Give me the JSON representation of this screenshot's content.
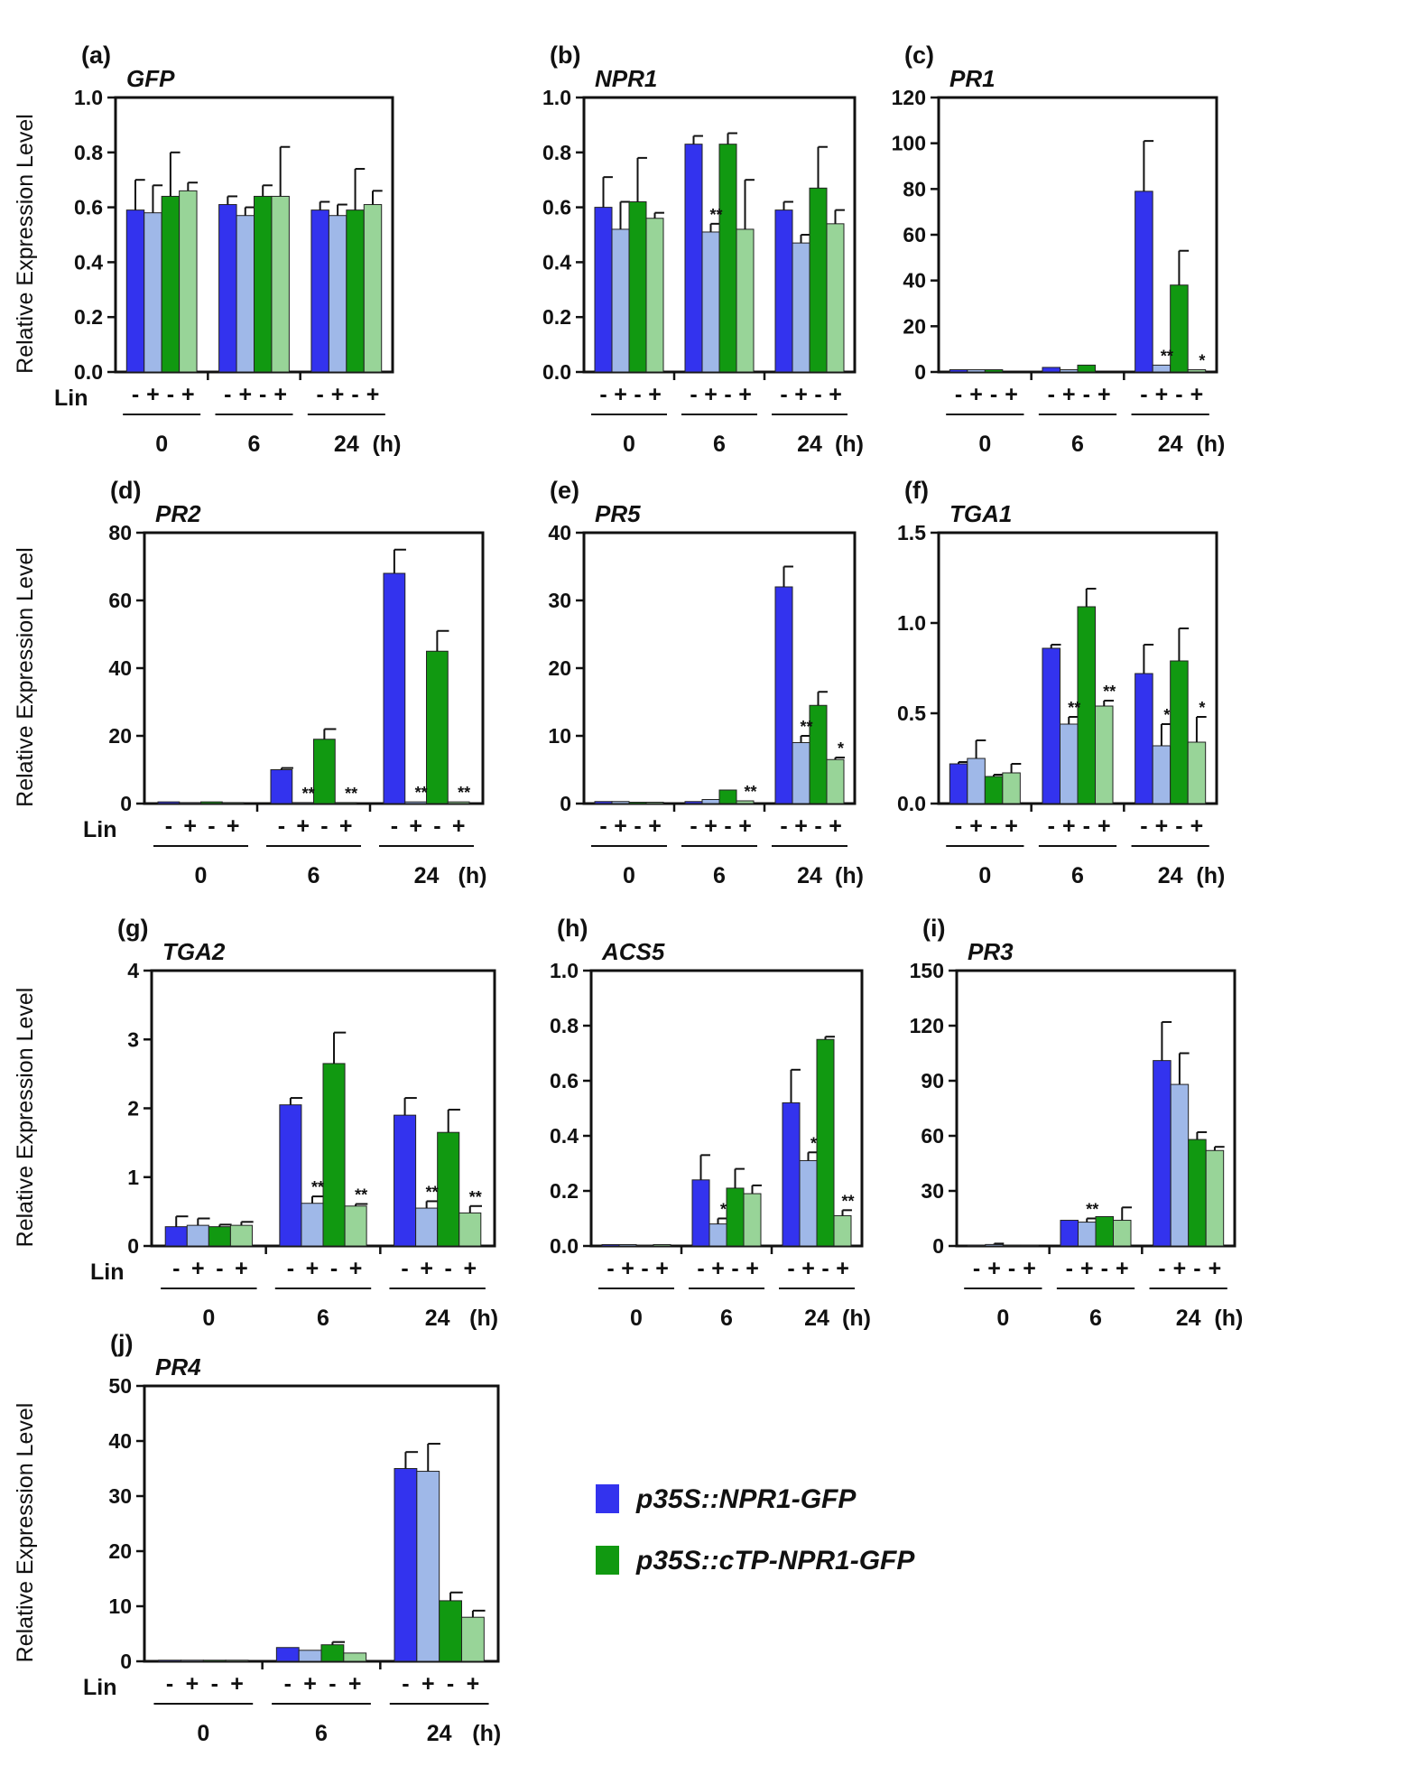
{
  "chart_data": [
    {
      "type": "bar",
      "panel_label": "(a)",
      "title": "GFP",
      "ylabel": "Relative Expression Level",
      "ylim": [
        0,
        1.0
      ],
      "yticks": [
        "0.0",
        "0.2",
        "0.4",
        "0.6",
        "0.8",
        "1.0"
      ],
      "groups": [
        "0",
        "6",
        "24"
      ],
      "time_unit": "(h)",
      "lin_label": "Lin",
      "lin_signs": [
        "-",
        "+",
        "-",
        "+"
      ],
      "series": [
        {
          "name": "p35S::NPR1-GFP -Lin",
          "values": [
            0.59,
            0.61,
            0.59
          ],
          "errors": [
            0.11,
            0.03,
            0.03
          ]
        },
        {
          "name": "p35S::NPR1-GFP +Lin",
          "values": [
            0.58,
            0.57,
            0.57
          ],
          "errors": [
            0.1,
            0.03,
            0.04
          ]
        },
        {
          "name": "p35S::cTP-NPR1-GFP -Lin",
          "values": [
            0.64,
            0.64,
            0.59
          ],
          "errors": [
            0.16,
            0.04,
            0.15
          ]
        },
        {
          "name": "p35S::cTP-NPR1-GFP +Lin",
          "values": [
            0.66,
            0.64,
            0.61
          ],
          "errors": [
            0.03,
            0.18,
            0.05
          ]
        }
      ],
      "annotations": []
    },
    {
      "type": "bar",
      "panel_label": "(b)",
      "title": "NPR1",
      "ylabel": "",
      "ylim": [
        0,
        1.0
      ],
      "yticks": [
        "0.0",
        "0.2",
        "0.4",
        "0.6",
        "0.8",
        "1.0"
      ],
      "groups": [
        "0",
        "6",
        "24"
      ],
      "time_unit": "(h)",
      "lin_label": "",
      "lin_signs": [
        "-",
        "+",
        "-",
        "+"
      ],
      "series": [
        {
          "name": "p35S::NPR1-GFP -Lin",
          "values": [
            0.6,
            0.83,
            0.59
          ],
          "errors": [
            0.11,
            0.03,
            0.03
          ]
        },
        {
          "name": "p35S::NPR1-GFP +Lin",
          "values": [
            0.52,
            0.51,
            0.47
          ],
          "errors": [
            0.1,
            0.03,
            0.03
          ]
        },
        {
          "name": "p35S::cTP-NPR1-GFP -Lin",
          "values": [
            0.62,
            0.83,
            0.67
          ],
          "errors": [
            0.16,
            0.04,
            0.15
          ]
        },
        {
          "name": "p35S::cTP-NPR1-GFP +Lin",
          "values": [
            0.56,
            0.52,
            0.54
          ],
          "errors": [
            0.02,
            0.18,
            0.05
          ]
        }
      ],
      "annotations": [
        {
          "group": 1,
          "bar": 1,
          "text": "**"
        }
      ]
    },
    {
      "type": "bar",
      "panel_label": "(c)",
      "title": "PR1",
      "ylabel": "",
      "ylim": [
        0,
        120
      ],
      "yticks": [
        "0",
        "20",
        "40",
        "60",
        "80",
        "100",
        "120"
      ],
      "groups": [
        "0",
        "6",
        "24"
      ],
      "time_unit": "(h)",
      "lin_label": "",
      "lin_signs": [
        "-",
        "+",
        "-",
        "+"
      ],
      "series": [
        {
          "name": "p35S::NPR1-GFP -Lin",
          "values": [
            1,
            2,
            79
          ],
          "errors": [
            0,
            0,
            22
          ]
        },
        {
          "name": "p35S::NPR1-GFP +Lin",
          "values": [
            1,
            1,
            3
          ],
          "errors": [
            0,
            0,
            0
          ]
        },
        {
          "name": "p35S::cTP-NPR1-GFP -Lin",
          "values": [
            1,
            3,
            38
          ],
          "errors": [
            0,
            0,
            15
          ]
        },
        {
          "name": "p35S::cTP-NPR1-GFP +Lin",
          "values": [
            0,
            0,
            1
          ],
          "errors": [
            0,
            0,
            0
          ]
        }
      ],
      "annotations": [
        {
          "group": 2,
          "bar": 1,
          "text": "**"
        },
        {
          "group": 2,
          "bar": 3,
          "text": "*"
        }
      ]
    },
    {
      "type": "bar",
      "panel_label": "(d)",
      "title": "PR2",
      "ylabel": "Relative Expression Level",
      "ylim": [
        0,
        80
      ],
      "yticks": [
        "0",
        "20",
        "40",
        "60",
        "80"
      ],
      "groups": [
        "0",
        "6",
        "24"
      ],
      "time_unit": "(h)",
      "lin_label": "Lin",
      "lin_signs": [
        "-",
        "+",
        "-",
        "+"
      ],
      "series": [
        {
          "name": "p35S::NPR1-GFP -Lin",
          "values": [
            0.5,
            10,
            68
          ],
          "errors": [
            0,
            0.5,
            7
          ]
        },
        {
          "name": "p35S::NPR1-GFP +Lin",
          "values": [
            0.3,
            0.3,
            0.5
          ],
          "errors": [
            0,
            0,
            0
          ]
        },
        {
          "name": "p35S::cTP-NPR1-GFP -Lin",
          "values": [
            0.5,
            19,
            45
          ],
          "errors": [
            0,
            3,
            6
          ]
        },
        {
          "name": "p35S::cTP-NPR1-GFP +Lin",
          "values": [
            0.3,
            0.3,
            0.5
          ],
          "errors": [
            0,
            0,
            0
          ]
        }
      ],
      "annotations": [
        {
          "group": 1,
          "bar": 1,
          "text": "**"
        },
        {
          "group": 1,
          "bar": 3,
          "text": "**"
        },
        {
          "group": 2,
          "bar": 1,
          "text": "**"
        },
        {
          "group": 2,
          "bar": 3,
          "text": "**"
        }
      ]
    },
    {
      "type": "bar",
      "panel_label": "(e)",
      "title": "PR5",
      "ylabel": "",
      "ylim": [
        0,
        40
      ],
      "yticks": [
        "0",
        "10",
        "20",
        "30",
        "40"
      ],
      "groups": [
        "0",
        "6",
        "24"
      ],
      "time_unit": "(h)",
      "lin_label": "",
      "lin_signs": [
        "-",
        "+",
        "-",
        "+"
      ],
      "series": [
        {
          "name": "p35S::NPR1-GFP -Lin",
          "values": [
            0.3,
            0.3,
            32
          ],
          "errors": [
            0,
            0,
            3
          ]
        },
        {
          "name": "p35S::NPR1-GFP +Lin",
          "values": [
            0.3,
            0.6,
            9
          ],
          "errors": [
            0,
            0,
            1
          ]
        },
        {
          "name": "p35S::cTP-NPR1-GFP -Lin",
          "values": [
            0.2,
            2,
            14.5
          ],
          "errors": [
            0,
            0,
            2
          ]
        },
        {
          "name": "p35S::cTP-NPR1-GFP +Lin",
          "values": [
            0.2,
            0.4,
            6.5
          ],
          "errors": [
            0,
            0,
            0.3
          ]
        }
      ],
      "annotations": [
        {
          "group": 1,
          "bar": 3,
          "text": "**"
        },
        {
          "group": 2,
          "bar": 1,
          "text": "**"
        },
        {
          "group": 2,
          "bar": 3,
          "text": "*"
        }
      ]
    },
    {
      "type": "bar",
      "panel_label": "(f)",
      "title": "TGA1",
      "ylabel": "",
      "ylim": [
        0,
        1.5
      ],
      "yticks": [
        "0.0",
        "0.5",
        "1.0",
        "1.5"
      ],
      "groups": [
        "0",
        "6",
        "24"
      ],
      "time_unit": "(h)",
      "lin_label": "",
      "lin_signs": [
        "-",
        "+",
        "-",
        "+"
      ],
      "series": [
        {
          "name": "p35S::NPR1-GFP -Lin",
          "values": [
            0.22,
            0.86,
            0.72
          ],
          "errors": [
            0.01,
            0.02,
            0.16
          ]
        },
        {
          "name": "p35S::NPR1-GFP +Lin",
          "values": [
            0.25,
            0.44,
            0.32
          ],
          "errors": [
            0.1,
            0.04,
            0.12
          ]
        },
        {
          "name": "p35S::cTP-NPR1-GFP -Lin",
          "values": [
            0.15,
            1.09,
            0.79
          ],
          "errors": [
            0.01,
            0.1,
            0.18
          ]
        },
        {
          "name": "p35S::cTP-NPR1-GFP +Lin",
          "values": [
            0.17,
            0.54,
            0.34
          ],
          "errors": [
            0.05,
            0.03,
            0.14
          ]
        }
      ],
      "annotations": [
        {
          "group": 1,
          "bar": 1,
          "text": "**"
        },
        {
          "group": 1,
          "bar": 3,
          "text": "**"
        },
        {
          "group": 2,
          "bar": 1,
          "text": "*"
        },
        {
          "group": 2,
          "bar": 3,
          "text": "*"
        }
      ]
    },
    {
      "type": "bar",
      "panel_label": "(g)",
      "title": "TGA2",
      "ylabel": "Relative Expression Level",
      "ylim": [
        0,
        4
      ],
      "yticks": [
        "0",
        "1",
        "2",
        "3",
        "4"
      ],
      "groups": [
        "0",
        "6",
        "24"
      ],
      "time_unit": "(h)",
      "lin_label": "Lin",
      "lin_signs": [
        "-",
        "+",
        "-",
        "+"
      ],
      "series": [
        {
          "name": "p35S::NPR1-GFP -Lin",
          "values": [
            0.28,
            2.05,
            1.9
          ],
          "errors": [
            0.15,
            0.1,
            0.25
          ]
        },
        {
          "name": "p35S::NPR1-GFP +Lin",
          "values": [
            0.3,
            0.62,
            0.55
          ],
          "errors": [
            0.1,
            0.1,
            0.1
          ]
        },
        {
          "name": "p35S::cTP-NPR1-GFP -Lin",
          "values": [
            0.28,
            2.65,
            1.65
          ],
          "errors": [
            0.03,
            0.45,
            0.33
          ]
        },
        {
          "name": "p35S::cTP-NPR1-GFP +Lin",
          "values": [
            0.3,
            0.58,
            0.48
          ],
          "errors": [
            0.05,
            0.03,
            0.1
          ]
        }
      ],
      "annotations": [
        {
          "group": 1,
          "bar": 1,
          "text": "**"
        },
        {
          "group": 1,
          "bar": 3,
          "text": "**"
        },
        {
          "group": 2,
          "bar": 1,
          "text": "**"
        },
        {
          "group": 2,
          "bar": 3,
          "text": "**"
        }
      ]
    },
    {
      "type": "bar",
      "panel_label": "(h)",
      "title": "ACS5",
      "ylabel": "",
      "ylim": [
        0,
        1.0
      ],
      "yticks": [
        "0.0",
        "0.2",
        "0.4",
        "0.6",
        "0.8",
        "1.0"
      ],
      "groups": [
        "0",
        "6",
        "24"
      ],
      "time_unit": "(h)",
      "lin_label": "",
      "lin_signs": [
        "-",
        "+",
        "-",
        "+"
      ],
      "series": [
        {
          "name": "p35S::NPR1-GFP -Lin",
          "values": [
            0.005,
            0.24,
            0.52
          ],
          "errors": [
            0,
            0.09,
            0.12
          ]
        },
        {
          "name": "p35S::NPR1-GFP +Lin",
          "values": [
            0.005,
            0.08,
            0.31
          ],
          "errors": [
            0,
            0.02,
            0.03
          ]
        },
        {
          "name": "p35S::cTP-NPR1-GFP -Lin",
          "values": [
            0.003,
            0.21,
            0.75
          ],
          "errors": [
            0,
            0.07,
            0.01
          ]
        },
        {
          "name": "p35S::cTP-NPR1-GFP +Lin",
          "values": [
            0.005,
            0.19,
            0.11
          ],
          "errors": [
            0,
            0.03,
            0.02
          ]
        }
      ],
      "annotations": [
        {
          "group": 1,
          "bar": 1,
          "text": "*"
        },
        {
          "group": 2,
          "bar": 1,
          "text": "*"
        },
        {
          "group": 2,
          "bar": 3,
          "text": "**"
        }
      ]
    },
    {
      "type": "bar",
      "panel_label": "(i)",
      "title": "PR3",
      "ylabel": "",
      "ylim": [
        0,
        150
      ],
      "yticks": [
        "0",
        "30",
        "60",
        "90",
        "120",
        "150"
      ],
      "groups": [
        "0",
        "6",
        "24"
      ],
      "time_unit": "(h)",
      "lin_label": "",
      "lin_signs": [
        "-",
        "+",
        "-",
        "+"
      ],
      "series": [
        {
          "name": "p35S::NPR1-GFP -Lin",
          "values": [
            0.5,
            14,
            101
          ],
          "errors": [
            0,
            0,
            21
          ]
        },
        {
          "name": "p35S::NPR1-GFP +Lin",
          "values": [
            0.8,
            13,
            88
          ],
          "errors": [
            0.5,
            2,
            17
          ]
        },
        {
          "name": "p35S::cTP-NPR1-GFP -Lin",
          "values": [
            0.5,
            16,
            58
          ],
          "errors": [
            0,
            0,
            4
          ]
        },
        {
          "name": "p35S::cTP-NPR1-GFP +Lin",
          "values": [
            0.5,
            14,
            52
          ],
          "errors": [
            0,
            7,
            2
          ]
        }
      ],
      "annotations": [
        {
          "group": 1,
          "bar": 1,
          "text": "**"
        }
      ]
    },
    {
      "type": "bar",
      "panel_label": "(j)",
      "title": "PR4",
      "ylabel": "Relative Expression Level",
      "ylim": [
        0,
        50
      ],
      "yticks": [
        "0",
        "10",
        "20",
        "30",
        "40",
        "50"
      ],
      "groups": [
        "0",
        "6",
        "24"
      ],
      "time_unit": "(h)",
      "lin_label": "Lin",
      "lin_signs": [
        "-",
        "+",
        "-",
        "+"
      ],
      "series": [
        {
          "name": "p35S::NPR1-GFP -Lin",
          "values": [
            0.2,
            2.5,
            35
          ],
          "errors": [
            0,
            0,
            3
          ]
        },
        {
          "name": "p35S::NPR1-GFP +Lin",
          "values": [
            0.2,
            2,
            34.5
          ],
          "errors": [
            0,
            0,
            5
          ]
        },
        {
          "name": "p35S::cTP-NPR1-GFP -Lin",
          "values": [
            0.2,
            3,
            11
          ],
          "errors": [
            0,
            0.5,
            1.5
          ]
        },
        {
          "name": "p35S::cTP-NPR1-GFP +Lin",
          "values": [
            0.2,
            1.5,
            8
          ],
          "errors": [
            0,
            0,
            1.2
          ]
        }
      ],
      "annotations": []
    }
  ],
  "legend": [
    {
      "label": "p35S::NPR1-GFP",
      "color": "#3333ee"
    },
    {
      "label": "p35S::cTP-NPR1-GFP",
      "color": "#119911"
    }
  ],
  "colors": {
    "blue": "#3333ee",
    "lightblue": "#9fb8e8",
    "green": "#119911",
    "lightgreen": "#98d498"
  }
}
